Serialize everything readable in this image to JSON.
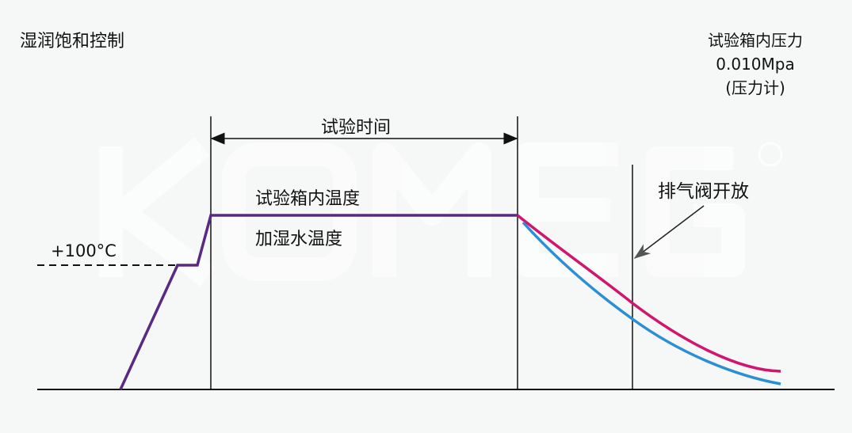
{
  "title": "湿润饱和控制",
  "pressure": {
    "line1": "试验箱内压力",
    "line2": "0.010Mpa",
    "line3": "(压力计)"
  },
  "labels": {
    "test_period": "试验时间",
    "chamber_temp": "试验箱内温度",
    "water_temp": "加湿水温度",
    "temp_level": "+100°C",
    "vent_open": "排气阀开放"
  },
  "watermark": "KOMEG®",
  "colors": {
    "chamber_temp": "#5a2a82",
    "pressure_curve": "#d0166f",
    "water_curve": "#2a8fd4",
    "axis": "#111111"
  }
}
